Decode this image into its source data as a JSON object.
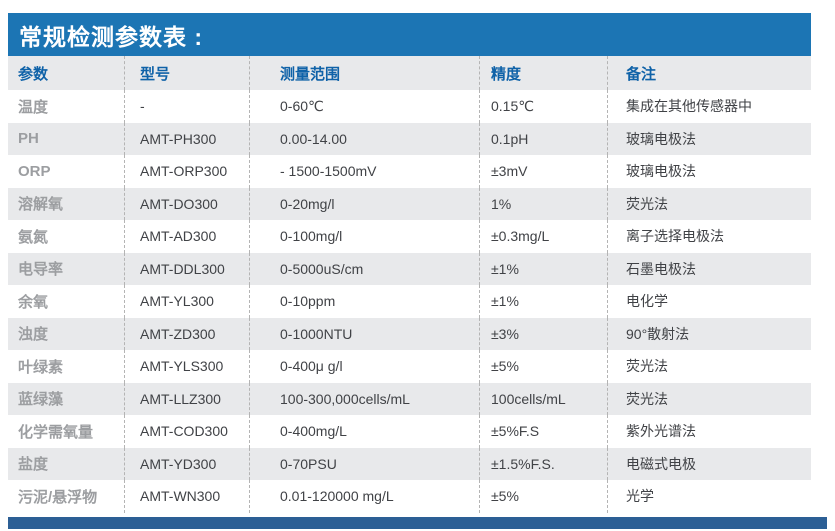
{
  "title": "常规检测参数表 :",
  "colors": {
    "banner_blue": "#1c75b4",
    "footer_blue": "#2c5f95",
    "header_text_blue": "#0f62a8",
    "stripe_gray": "#e8e9eb",
    "param_text_gray": "#9c9ea1",
    "body_text": "#404246"
  },
  "table": {
    "columns": [
      "参数",
      "型号",
      "测量范围",
      "精度",
      "备注"
    ],
    "rows": [
      {
        "param": "温度",
        "model": "-",
        "range": "0-60℃",
        "accuracy": "0.15℃",
        "note": "集成在其他传感器中"
      },
      {
        "param": "PH",
        "model": "AMT-PH300",
        "range": "0.00-14.00",
        "accuracy": "0.1pH",
        "note": "玻璃电极法"
      },
      {
        "param": "ORP",
        "model": "AMT-ORP300",
        "range": "- 1500-1500mV",
        "accuracy": "±3mV",
        "note": "玻璃电极法"
      },
      {
        "param": "溶解氧",
        "model": "AMT-DO300",
        "range": "0-20mg/l",
        "accuracy": "1%",
        "note": "荧光法"
      },
      {
        "param": "氨氮",
        "model": "AMT-AD300",
        "range": "0-100mg/l",
        "accuracy": "±0.3mg/L",
        "note": "离子选择电极法"
      },
      {
        "param": "电导率",
        "model": "AMT-DDL300",
        "range": "0-5000uS/cm",
        "accuracy": "±1%",
        "note": "石墨电极法"
      },
      {
        "param": "余氧",
        "model": "AMT-YL300",
        "range": "0-10ppm",
        "accuracy": "±1%",
        "note": "电化学"
      },
      {
        "param": "浊度",
        "model": "AMT-ZD300",
        "range": "0-1000NTU",
        "accuracy": "±3%",
        "note": "90°散射法"
      },
      {
        "param": "叶绿素",
        "model": "AMT-YLS300",
        "range": "0-400μ g/l",
        "accuracy": "±5%",
        "note": "荧光法"
      },
      {
        "param": "蓝绿藻",
        "model": "AMT-LLZ300",
        "range": "100-300,000cells/mL",
        "accuracy": "100cells/mL",
        "note": "荧光法"
      },
      {
        "param": "化学需氧量",
        "model": "AMT-COD300",
        "range": "0-400mg/L",
        "accuracy": "±5%F.S",
        "note": "紫外光谱法"
      },
      {
        "param": "盐度",
        "model": "AMT-YD300",
        "range": "0-70PSU",
        "accuracy": "±1.5%F.S.",
        "note": "电磁式电极"
      },
      {
        "param": "污泥/悬浮物",
        "model": "AMT-WN300",
        "range": "0.01-120000 mg/L",
        "accuracy": "±5%",
        "note": "光学"
      }
    ]
  }
}
